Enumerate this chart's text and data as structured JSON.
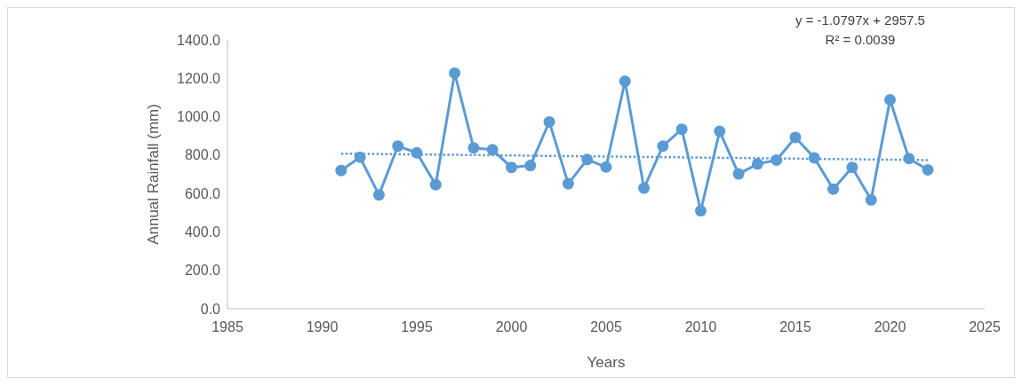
{
  "chart_data": {
    "type": "line",
    "xlabel": "Years",
    "ylabel": "Annual Rainfall (mm)",
    "xlim": [
      1985,
      2025
    ],
    "xticks": [
      1985,
      1990,
      1995,
      2000,
      2005,
      2010,
      2015,
      2020,
      2025
    ],
    "ylim": [
      0,
      1400
    ],
    "yticks": [
      {
        "value": 0,
        "label": "0.0"
      },
      {
        "value": 200,
        "label": "200.0"
      },
      {
        "value": 400,
        "label": "400.0"
      },
      {
        "value": 600,
        "label": "600.0"
      },
      {
        "value": 800,
        "label": "800.0"
      },
      {
        "value": 1000,
        "label": "1000.0"
      },
      {
        "value": 1200,
        "label": "1200.0"
      },
      {
        "value": 1400,
        "label": "1400.0"
      }
    ],
    "grid": false,
    "annotations": [
      "y = -1.0797x + 2957.5",
      "R² = 0.0039"
    ],
    "series": [
      {
        "color": "#5b9bd5",
        "marker": "circle",
        "line_style": "solid",
        "x": [
          1991,
          1992,
          1993,
          1994,
          1995,
          1996,
          1997,
          1998,
          1999,
          2000,
          2001,
          2002,
          2003,
          2004,
          2005,
          2006,
          2007,
          2008,
          2009,
          2010,
          2011,
          2012,
          2013,
          2014,
          2015,
          2016,
          2017,
          2018,
          2019,
          2020,
          2021,
          2022
        ],
        "values": [
          720,
          789,
          593,
          847,
          812,
          646,
          1227,
          838,
          828,
          736,
          746,
          973,
          651,
          777,
          738,
          1185,
          628,
          847,
          935,
          510,
          924,
          702,
          754,
          774,
          892,
          786,
          623,
          736,
          567,
          1088,
          782,
          723
        ]
      },
      {
        "color": "#5b9bd5",
        "marker": "none",
        "line_style": "dotted",
        "x": [
          1991,
          2022
        ],
        "values": [
          808,
          774
        ]
      }
    ]
  }
}
